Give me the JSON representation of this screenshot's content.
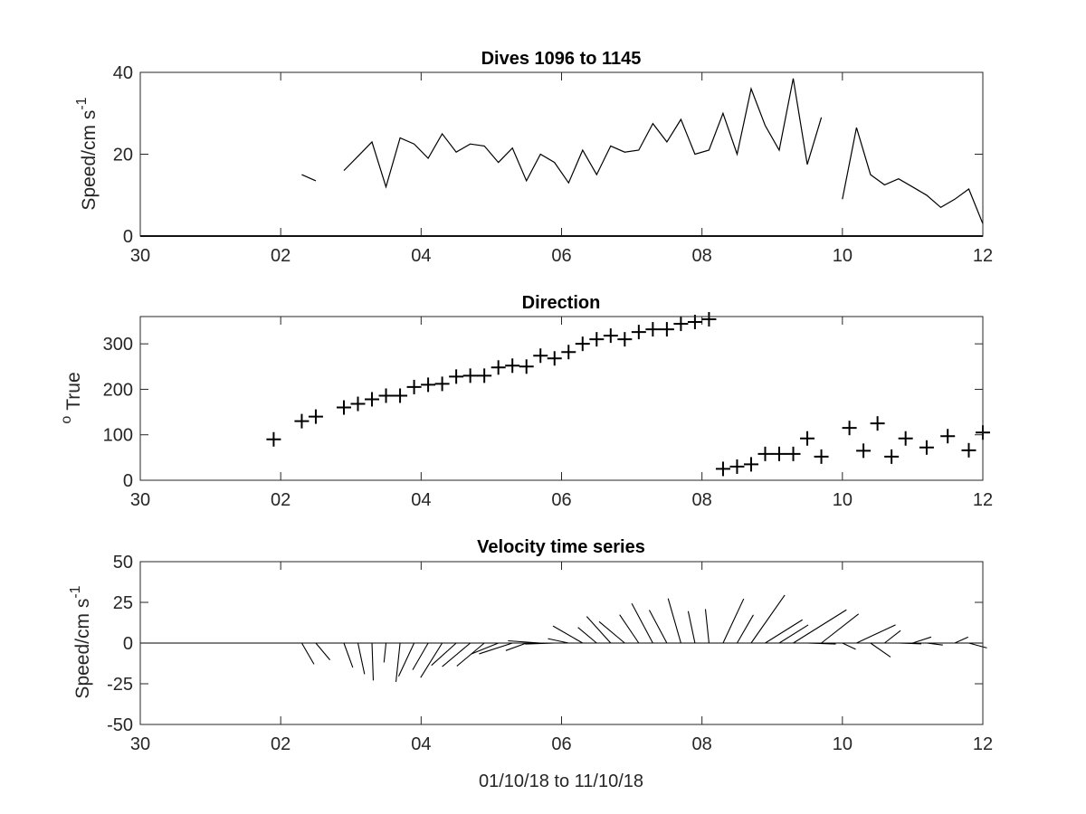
{
  "chart_data": [
    {
      "type": "line",
      "title": "Dives 1096 to 1145",
      "ylabel": "Speed/cm s",
      "ylabel_superscript": "-1",
      "xlim": [
        0,
        12
      ],
      "ylim": [
        0,
        40
      ],
      "xtick_values": [
        0,
        2,
        4,
        6,
        8,
        10,
        12
      ],
      "xtick_labels": [
        "30",
        "02",
        "04",
        "06",
        "08",
        "10",
        "12"
      ],
      "ytick_values": [
        0,
        20,
        40
      ],
      "ytick_labels": [
        "0",
        "20",
        "40"
      ],
      "grid": false,
      "zero_line": true,
      "series": [
        {
          "segments": [
            [
              [
                2.3,
                15
              ],
              [
                2.5,
                13.5
              ]
            ],
            [
              [
                2.9,
                16
              ],
              [
                3.1,
                19.5
              ],
              [
                3.3,
                23
              ],
              [
                3.5,
                12
              ],
              [
                3.7,
                24
              ],
              [
                3.9,
                22.5
              ],
              [
                4.1,
                19
              ],
              [
                4.3,
                25
              ],
              [
                4.5,
                20.5
              ],
              [
                4.7,
                22.5
              ],
              [
                4.9,
                22
              ],
              [
                5.1,
                18
              ],
              [
                5.3,
                21.5
              ],
              [
                5.5,
                13.5
              ],
              [
                5.7,
                20
              ],
              [
                5.9,
                18
              ],
              [
                6.1,
                13
              ],
              [
                6.3,
                21
              ],
              [
                6.5,
                15
              ],
              [
                6.7,
                22
              ],
              [
                6.9,
                20.5
              ],
              [
                7.1,
                21
              ],
              [
                7.3,
                27.5
              ],
              [
                7.5,
                23
              ],
              [
                7.7,
                28.5
              ],
              [
                7.9,
                20
              ],
              [
                8.1,
                21
              ],
              [
                8.3,
                30
              ],
              [
                8.5,
                20
              ],
              [
                8.7,
                36
              ],
              [
                8.9,
                27
              ],
              [
                9.1,
                21
              ],
              [
                9.3,
                38.5
              ],
              [
                9.5,
                17.5
              ],
              [
                9.7,
                29
              ]
            ],
            [
              [
                10.0,
                9
              ],
              [
                10.2,
                26.5
              ],
              [
                10.4,
                15
              ],
              [
                10.6,
                12.5
              ],
              [
                10.8,
                14
              ],
              [
                11.0,
                12
              ],
              [
                11.2,
                10
              ],
              [
                11.4,
                7
              ],
              [
                11.6,
                9
              ],
              [
                11.8,
                11.5
              ],
              [
                12.0,
                3
              ]
            ]
          ]
        }
      ]
    },
    {
      "type": "scatter",
      "title": "Direction",
      "ylabel": "True",
      "ylabel_superscript": "o",
      "xlim": [
        0,
        12
      ],
      "ylim": [
        0,
        360
      ],
      "xtick_values": [
        0,
        2,
        4,
        6,
        8,
        10,
        12
      ],
      "xtick_labels": [
        "30",
        "02",
        "04",
        "06",
        "08",
        "10",
        "12"
      ],
      "ytick_values": [
        0,
        100,
        200,
        300
      ],
      "ytick_labels": [
        "0",
        "100",
        "200",
        "300"
      ],
      "grid": false,
      "marker": "+",
      "points": [
        [
          1.9,
          90
        ],
        [
          2.3,
          130
        ],
        [
          2.5,
          140
        ],
        [
          2.9,
          160
        ],
        [
          3.1,
          168
        ],
        [
          3.3,
          178
        ],
        [
          3.5,
          186
        ],
        [
          3.7,
          186
        ],
        [
          3.9,
          205
        ],
        [
          4.1,
          210
        ],
        [
          4.3,
          212
        ],
        [
          4.5,
          228
        ],
        [
          4.7,
          230
        ],
        [
          4.9,
          230
        ],
        [
          5.1,
          248
        ],
        [
          5.3,
          252
        ],
        [
          5.5,
          250
        ],
        [
          5.7,
          274
        ],
        [
          5.9,
          268
        ],
        [
          6.1,
          282
        ],
        [
          6.3,
          300
        ],
        [
          6.5,
          310
        ],
        [
          6.7,
          318
        ],
        [
          6.9,
          310
        ],
        [
          7.1,
          326
        ],
        [
          7.3,
          332
        ],
        [
          7.5,
          332
        ],
        [
          7.7,
          344
        ],
        [
          7.9,
          348
        ],
        [
          8.1,
          354
        ],
        [
          8.3,
          25
        ],
        [
          8.5,
          30
        ],
        [
          8.7,
          35
        ],
        [
          8.9,
          58
        ],
        [
          9.1,
          58
        ],
        [
          9.3,
          58
        ],
        [
          9.5,
          92
        ],
        [
          9.7,
          52
        ],
        [
          10.1,
          115
        ],
        [
          10.3,
          65
        ],
        [
          10.5,
          125
        ],
        [
          10.7,
          52
        ],
        [
          10.9,
          92
        ],
        [
          11.2,
          72
        ],
        [
          11.5,
          97
        ],
        [
          11.8,
          66
        ],
        [
          12.0,
          105
        ]
      ]
    },
    {
      "type": "quiver",
      "title": "Velocity time series",
      "xlabel": "01/10/18 to 11/10/18",
      "ylabel": "Speed/cm s",
      "ylabel_superscript": "-1",
      "xlim": [
        0,
        12
      ],
      "ylim": [
        -50,
        50
      ],
      "xtick_values": [
        0,
        2,
        4,
        6,
        8,
        10,
        12
      ],
      "xtick_labels": [
        "30",
        "02",
        "04",
        "06",
        "08",
        "10",
        "12"
      ],
      "ytick_values": [
        -50,
        -25,
        0,
        25,
        50
      ],
      "ytick_labels": [
        "-50",
        "-25",
        "0",
        "25",
        "50"
      ],
      "grid": false,
      "zero_line": true,
      "vectors": [
        [
          2.3,
          15,
          150
        ],
        [
          2.5,
          13.5,
          140
        ],
        [
          2.9,
          16,
          160
        ],
        [
          3.1,
          19.5,
          168
        ],
        [
          3.3,
          23,
          178
        ],
        [
          3.5,
          12,
          186
        ],
        [
          3.7,
          24,
          186
        ],
        [
          3.9,
          22.5,
          205
        ],
        [
          4.1,
          19,
          210
        ],
        [
          4.3,
          25,
          212
        ],
        [
          4.5,
          20.5,
          228
        ],
        [
          4.7,
          22.5,
          230
        ],
        [
          4.9,
          22,
          230
        ],
        [
          5.1,
          18,
          248
        ],
        [
          5.3,
          21.5,
          252
        ],
        [
          5.5,
          13.5,
          250
        ],
        [
          5.7,
          20,
          274
        ],
        [
          5.9,
          18,
          268
        ],
        [
          6.1,
          13,
          282
        ],
        [
          6.3,
          21,
          300
        ],
        [
          6.5,
          15,
          310
        ],
        [
          6.7,
          22,
          318
        ],
        [
          6.9,
          20.5,
          310
        ],
        [
          7.1,
          21,
          326
        ],
        [
          7.3,
          27.5,
          332
        ],
        [
          7.5,
          23,
          332
        ],
        [
          7.7,
          28.5,
          344
        ],
        [
          7.9,
          20,
          348
        ],
        [
          8.1,
          21,
          354
        ],
        [
          8.3,
          30,
          25
        ],
        [
          8.5,
          20,
          30
        ],
        [
          8.7,
          36,
          35
        ],
        [
          8.9,
          27,
          58
        ],
        [
          9.1,
          21,
          58
        ],
        [
          9.3,
          38.5,
          58
        ],
        [
          9.5,
          17.5,
          92
        ],
        [
          9.7,
          29,
          52
        ],
        [
          10.0,
          9,
          115
        ],
        [
          10.2,
          26.5,
          65
        ],
        [
          10.4,
          15,
          125
        ],
        [
          10.6,
          12.5,
          52
        ],
        [
          10.8,
          14,
          92
        ],
        [
          11.0,
          12,
          72
        ],
        [
          11.2,
          10,
          97
        ],
        [
          11.6,
          9,
          66
        ],
        [
          11.8,
          11.5,
          105
        ]
      ]
    }
  ]
}
